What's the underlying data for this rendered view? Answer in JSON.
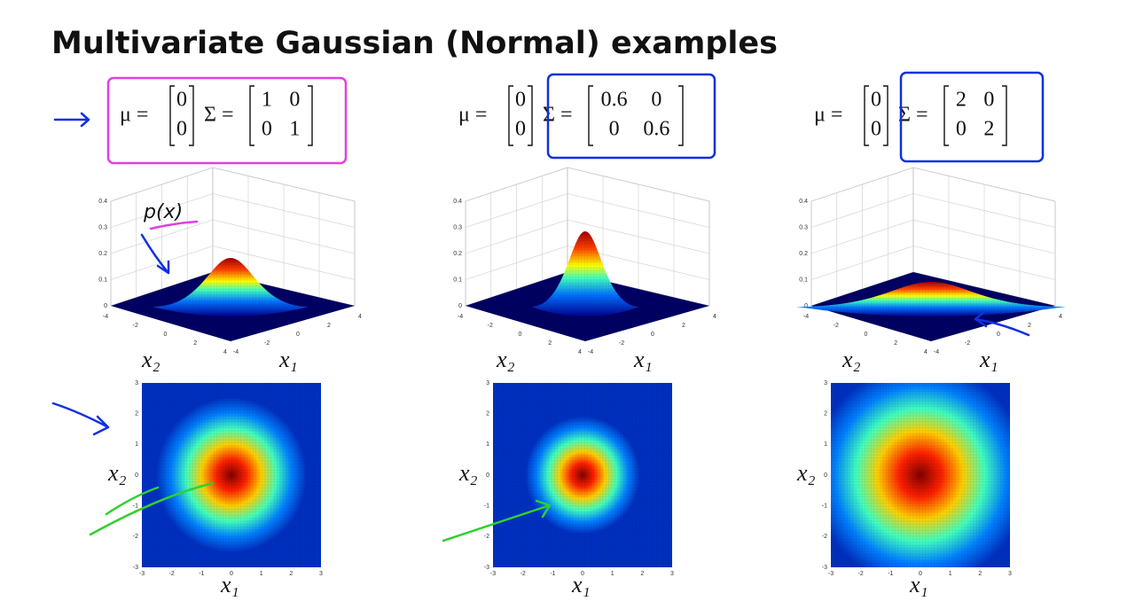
{
  "title": "Multivariate Gaussian (Normal) examples",
  "annotation": "p(x)",
  "panels": [
    {
      "mu_label": "μ =",
      "mu": [
        0,
        0
      ],
      "sigma_label": "Σ =",
      "sigma": [
        [
          1,
          0
        ],
        [
          0,
          1
        ]
      ],
      "surface": {
        "zticks": [
          0,
          0.1,
          0.2,
          0.3,
          0.4
        ],
        "x1_ticks": [
          -4,
          -2,
          0,
          2,
          4
        ],
        "x2_ticks": [
          -4,
          -2,
          0,
          2,
          4
        ],
        "x1_label": "x₁",
        "x2_label": "x₂"
      },
      "contour": {
        "ticks": [
          -3,
          -2,
          -1,
          0,
          1,
          2,
          3
        ],
        "x1_label": "x₁",
        "x2_label": "x₂"
      }
    },
    {
      "mu_label": "μ =",
      "mu": [
        0,
        0
      ],
      "sigma_label": "Σ =",
      "sigma": [
        [
          0.6,
          0
        ],
        [
          0,
          0.6
        ]
      ],
      "surface": {
        "zticks": [
          0,
          0.1,
          0.2,
          0.3,
          0.4
        ],
        "x1_ticks": [
          -4,
          -2,
          0,
          2,
          4
        ],
        "x2_ticks": [
          -4,
          -2,
          0,
          2,
          4
        ],
        "x1_label": "x₁",
        "x2_label": "x₂"
      },
      "contour": {
        "ticks": [
          -3,
          -2,
          -1,
          0,
          1,
          2,
          3
        ],
        "x1_label": "x₁",
        "x2_label": "x₂"
      }
    },
    {
      "mu_label": "μ =",
      "mu": [
        0,
        0
      ],
      "sigma_label": "Σ =",
      "sigma": [
        [
          2,
          0
        ],
        [
          0,
          2
        ]
      ],
      "surface": {
        "zticks": [
          0,
          0.1,
          0.2,
          0.3,
          0.4
        ],
        "x1_ticks": [
          -4,
          -2,
          0,
          2,
          4
        ],
        "x2_ticks": [
          -4,
          -2,
          0,
          2,
          4
        ],
        "x1_label": "x₁",
        "x2_label": "x₂"
      },
      "contour": {
        "ticks": [
          -3,
          -2,
          -1,
          0,
          1,
          2,
          3
        ],
        "x1_label": "x₁",
        "x2_label": "x₂"
      }
    }
  ]
}
